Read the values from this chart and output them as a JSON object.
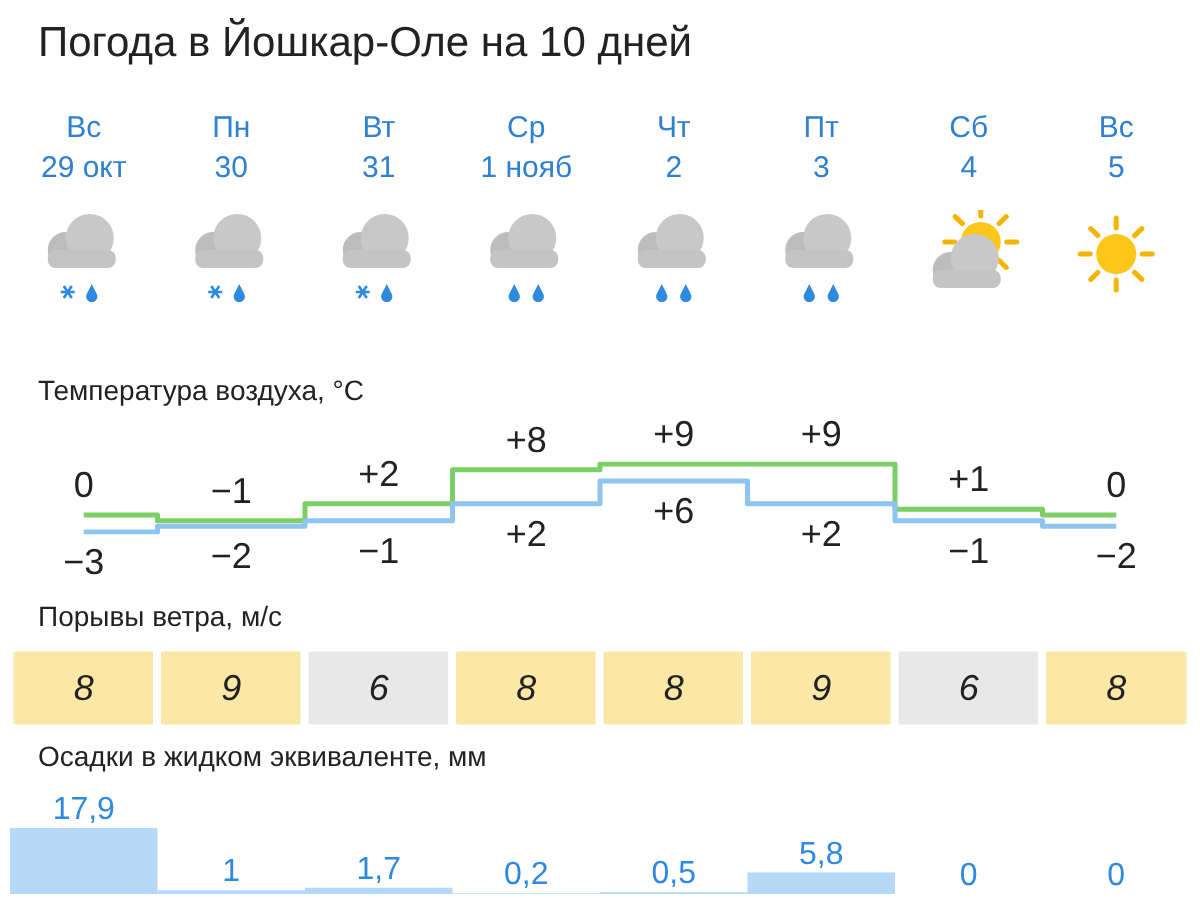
{
  "chart_data": [
    {
      "type": "other",
      "title": "Погода в Йошкар-Оле на 10 дней"
    },
    {
      "type": "step",
      "title": "Температура воздуха, °C",
      "categories": [
        "Вс\n29 окт",
        "Пн\n30",
        "Вт\n31",
        "Ср\n1 нояб",
        "Чт\n2",
        "Пт\n3",
        "Сб\n4",
        "Вс\n5"
      ],
      "tick_labels": "x",
      "series": [
        {
          "color": "#7ccf62",
          "values": [
            0,
            -1,
            2,
            8,
            9,
            9,
            1,
            0
          ],
          "value_labels": [
            "0",
            "−1",
            "+2",
            "+8",
            "+9",
            "+9",
            "+1",
            "0"
          ]
        },
        {
          "color": "#8ec5ee",
          "values": [
            -3,
            -2,
            -1,
            2,
            6,
            2,
            -1,
            -2
          ],
          "value_labels": [
            "−3",
            "−2",
            "−1",
            "+2",
            "+6",
            "+2",
            "−1",
            "−2"
          ]
        }
      ]
    },
    {
      "type": "heatmap",
      "title": "Порывы ветра, м/с",
      "categories": [
        null,
        null,
        null,
        null,
        null,
        null,
        null,
        null
      ],
      "y_categories": [
        null
      ],
      "cells": [
        [
          8,
          9,
          6,
          8,
          8,
          9,
          6,
          8
        ]
      ],
      "colors": [
        "#fbe7a6",
        "#fbe7a6",
        "#e8e8e8",
        "#fbe7a6",
        "#fbe7a6",
        "#fbe7a6",
        "#e8e8e8",
        "#fbe7a6"
      ],
      "data_labels": true,
      "tick_labels": false
    },
    {
      "type": "bar",
      "title": "Осадки в жидком эквиваленте, мм",
      "categories": [
        null,
        null,
        null,
        null,
        null,
        null,
        null,
        null
      ],
      "values": [
        17.9,
        1,
        1.7,
        0.2,
        0.5,
        5.8,
        0,
        0
      ],
      "value_labels": [
        "17,9",
        "1",
        "1,7",
        "0,2",
        "0,5",
        "5,8",
        "0",
        "0"
      ],
      "color": "#b5d9f7",
      "tick_labels": false
    }
  ]
}
